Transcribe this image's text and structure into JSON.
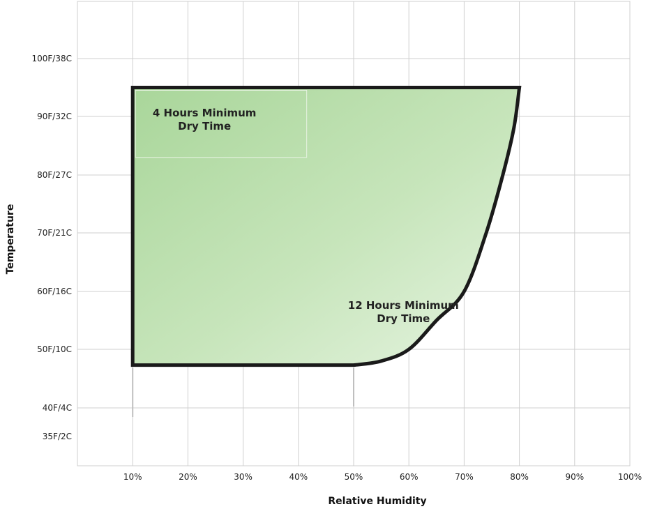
{
  "chart_data": {
    "type": "area",
    "xlabel": "Relative Humidity",
    "ylabel": "Temperature",
    "xlim": [
      0,
      100
    ],
    "x_ticks": [
      10,
      20,
      30,
      40,
      50,
      60,
      70,
      80,
      90,
      100
    ],
    "x_tick_labels": [
      "10%",
      "20%",
      "30%",
      "40%",
      "50%",
      "60%",
      "70%",
      "80%",
      "90%",
      "100%"
    ],
    "y_ticks": [
      {
        "value_f": 35,
        "label": "35F/2C"
      },
      {
        "value_f": 40,
        "label": "40F/4C"
      },
      {
        "value_f": 50,
        "label": "50F/10C"
      },
      {
        "value_f": 60,
        "label": "60F/16C"
      },
      {
        "value_f": 70,
        "label": "70F/21C"
      },
      {
        "value_f": 80,
        "label": "80F/27C"
      },
      {
        "value_f": 90,
        "label": "90F/32C"
      },
      {
        "value_f": 100,
        "label": "100F/38C"
      }
    ],
    "grid": true,
    "regions": [
      {
        "boundary": [
          {
            "x": 10,
            "y": 95
          },
          {
            "x": 80,
            "y": 95
          },
          {
            "x": 79,
            "y": 88
          },
          {
            "x": 77,
            "y": 80
          },
          {
            "x": 74,
            "y": 70
          },
          {
            "x": 70,
            "y": 60
          },
          {
            "x": 65,
            "y": 55
          },
          {
            "x": 60,
            "y": 50
          },
          {
            "x": 55,
            "y": 48
          },
          {
            "x": 50,
            "y": 47.3
          },
          {
            "x": 10,
            "y": 47.3
          }
        ],
        "fill": "#c4e3b6",
        "stroke": "#1a1a1a"
      }
    ],
    "annotations": [
      {
        "lines": [
          "4 Hours Minimum",
          "Dry Time"
        ],
        "x": 23,
        "y": 90
      },
      {
        "lines": [
          "12 Hours Minimum",
          "Dry Time"
        ],
        "x": 59,
        "y": 57
      }
    ]
  }
}
